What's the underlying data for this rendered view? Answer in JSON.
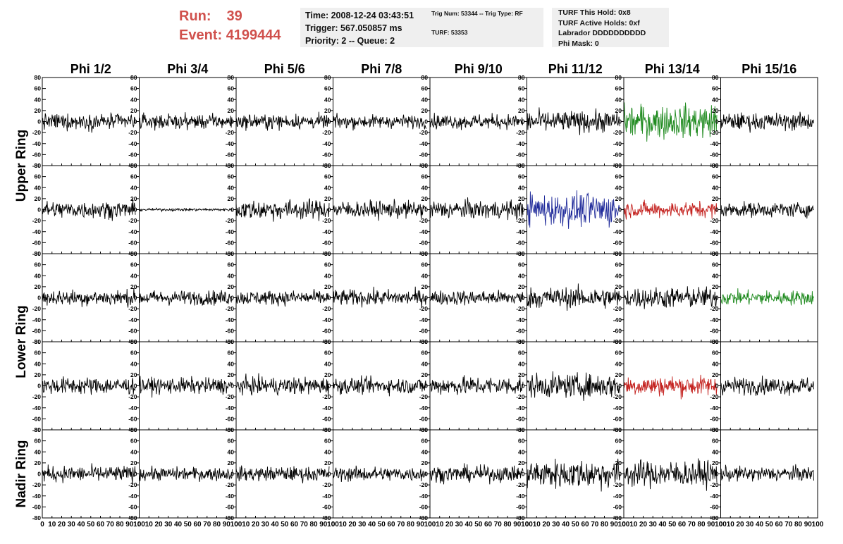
{
  "header": {
    "run_label": "Run:",
    "run_value": "39",
    "event_label": "Event:",
    "event_value": "4199444",
    "time": "Time: 2008-12-24 03:43:51",
    "trigger": "Trigger: 567.050857 ms",
    "priority": "Priority: 2 -- Queue: 2",
    "trig_num": "Trig Num: 53344 -- Trig Type: RF",
    "turf_num": "TURF: 53353",
    "turf_this_hold": "TURF This Hold: 0x8",
    "turf_active_holds": "TURF Active Holds: 0xf",
    "labrador": "Labrador DDDDDDDDDD",
    "phi_mask": "Phi Mask: 0"
  },
  "chart_data": {
    "type": "line",
    "columns": [
      "Phi 1/2",
      "Phi 3/4",
      "Phi 5/6",
      "Phi 7/8",
      "Phi 9/10",
      "Phi 11/12",
      "Phi 13/14",
      "Phi 15/16"
    ],
    "ring_labels": [
      "Upper Ring",
      "Lower Ring",
      "Nadir Ring"
    ],
    "ring_row_spans": [
      [
        0,
        1
      ],
      [
        2,
        3
      ],
      [
        4,
        4
      ]
    ],
    "rows": 5,
    "xlim": [
      0,
      100
    ],
    "ylim": [
      -80,
      80
    ],
    "x_data_extent": [
      0,
      96
    ],
    "x_ticks": [
      0,
      10,
      20,
      30,
      40,
      50,
      60,
      70,
      80,
      90,
      100
    ],
    "y_ticks": [
      -80,
      -60,
      -40,
      -20,
      0,
      20,
      40,
      60,
      80
    ],
    "colors": {
      "default": "#000000",
      "green": "#1e8a1e",
      "blue": "#1f2a9a",
      "red": "#c4221f"
    },
    "trace_amplitude_rms": [
      [
        12,
        11,
        11,
        10,
        11,
        16,
        25,
        13
      ],
      [
        13,
        2,
        15,
        13,
        14,
        25,
        12,
        11
      ],
      [
        12,
        11,
        11,
        12,
        11,
        16,
        16,
        11
      ],
      [
        13,
        12,
        13,
        12,
        14,
        18,
        15,
        13
      ],
      [
        12,
        10,
        11,
        11,
        12,
        22,
        20,
        11
      ]
    ],
    "trace_colors": [
      [
        "default",
        "default",
        "default",
        "default",
        "default",
        "default",
        "green",
        "default"
      ],
      [
        "default",
        "default",
        "default",
        "default",
        "default",
        "blue",
        "red",
        "default"
      ],
      [
        "default",
        "default",
        "default",
        "default",
        "default",
        "default",
        "default",
        "green"
      ],
      [
        "default",
        "default",
        "default",
        "default",
        "default",
        "default",
        "red",
        "default"
      ],
      [
        "default",
        "default",
        "default",
        "default",
        "default",
        "default",
        "default",
        "default"
      ]
    ]
  }
}
